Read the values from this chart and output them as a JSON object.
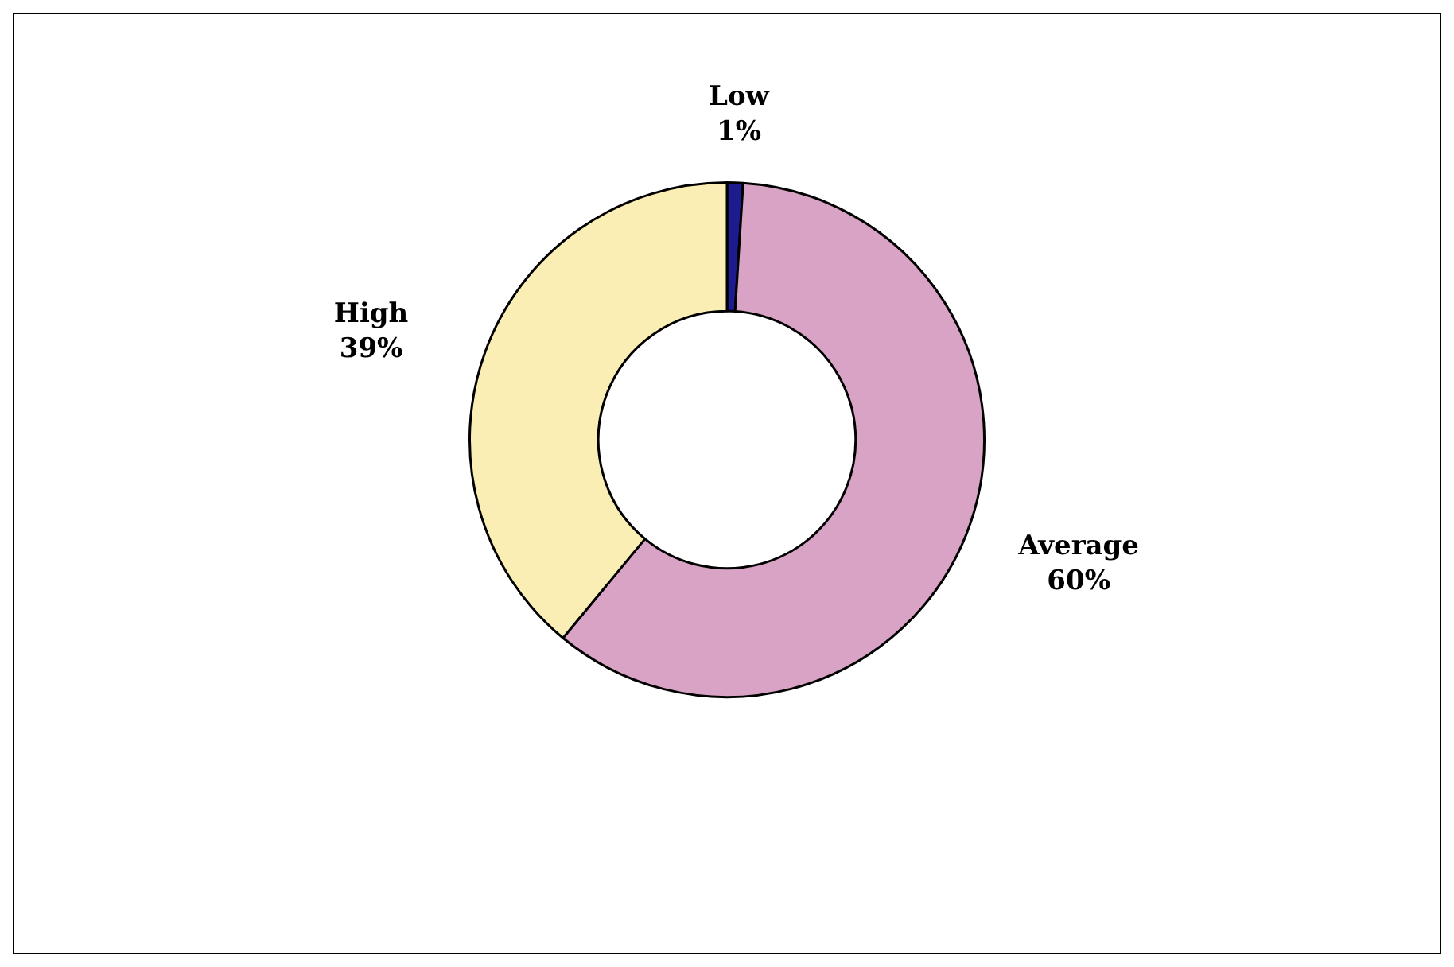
{
  "chart_data": {
    "type": "donut",
    "categories": [
      "Low",
      "Average",
      "High"
    ],
    "values": [
      1,
      60,
      39
    ],
    "colors": [
      "#1c1c8f",
      "#d8a3c4",
      "#fbeeb4"
    ],
    "value_labels": [
      "1%",
      "60%",
      "39%"
    ],
    "legend": false
  }
}
